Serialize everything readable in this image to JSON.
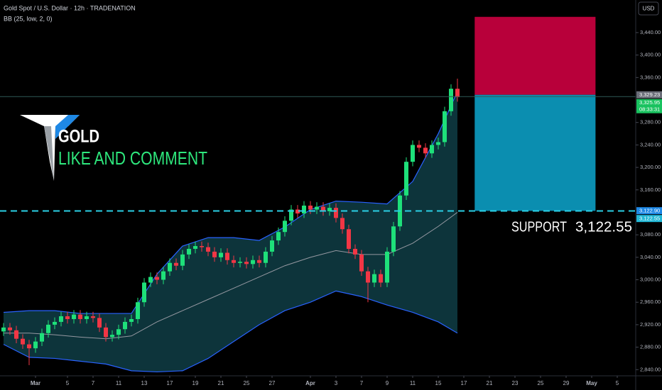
{
  "chart_data": {
    "type": "candlestick",
    "title": "Gold Spot / U.S. Dollar · 12h · TRADENATION",
    "indicator": "BB (25, low, 2, 0)",
    "currency": "USD",
    "overlay_title": "GOLD",
    "overlay_subtitle": "LIKE AND COMMENT",
    "up_color": "#1ee07a",
    "down_color": "#f23645",
    "open": [
      2908,
      2915,
      2910,
      2895,
      2885,
      2878,
      2890,
      2905,
      2920,
      2925,
      2935,
      2930,
      2938,
      2930,
      2935,
      2932,
      2915,
      2898,
      2902,
      2912,
      2925,
      2930,
      2960,
      2995,
      3005,
      3000,
      3015,
      3030,
      3025,
      3045,
      3055,
      3060,
      3058,
      3050,
      3040,
      3048,
      3035,
      3030,
      3032,
      3028,
      3035,
      3030,
      3050,
      3070,
      3085,
      3105,
      3125,
      3118,
      3132,
      3125,
      3130,
      3122,
      3128,
      3110,
      3090,
      3055,
      3045,
      3015,
      2995,
      3010,
      2995,
      3050,
      3095,
      3150,
      3210,
      3240,
      3235,
      3225,
      3240,
      3245,
      3300,
      3340
    ],
    "high": [
      2923,
      2923,
      2918,
      2903,
      2893,
      2898,
      2913,
      2928,
      2933,
      2943,
      2943,
      2946,
      2946,
      2943,
      2943,
      2940,
      2923,
      2910,
      2920,
      2933,
      2938,
      2968,
      3003,
      3013,
      3013,
      3023,
      3038,
      3038,
      3053,
      3063,
      3068,
      3068,
      3066,
      3058,
      3056,
      3056,
      3043,
      3040,
      3040,
      3043,
      3043,
      3058,
      3078,
      3093,
      3113,
      3133,
      3133,
      3140,
      3140,
      3138,
      3138,
      3136,
      3136,
      3118,
      3098,
      3063,
      3053,
      3023,
      3018,
      3018,
      3058,
      3103,
      3158,
      3218,
      3248,
      3248,
      3243,
      3248,
      3253,
      3308,
      3348,
      3358
    ],
    "low": [
      2900,
      2902,
      2887,
      2877,
      2848,
      2870,
      2882,
      2897,
      2912,
      2917,
      2922,
      2922,
      2922,
      2922,
      2924,
      2907,
      2890,
      2890,
      2894,
      2904,
      2917,
      2922,
      2952,
      2987,
      2992,
      2992,
      3007,
      3017,
      3017,
      3037,
      3047,
      3050,
      3042,
      3032,
      3032,
      3027,
      3022,
      3022,
      3020,
      3020,
      3022,
      3022,
      3042,
      3062,
      3077,
      3097,
      3110,
      3110,
      3117,
      3117,
      3114,
      3114,
      3102,
      3082,
      3047,
      3037,
      3007,
      2960,
      2987,
      2987,
      2987,
      3042,
      3087,
      3142,
      3202,
      3227,
      3217,
      3217,
      3232,
      3237,
      3292,
      3317
    ],
    "close": [
      2915,
      2910,
      2895,
      2885,
      2878,
      2890,
      2905,
      2920,
      2925,
      2935,
      2930,
      2938,
      2930,
      2935,
      2932,
      2915,
      2898,
      2902,
      2912,
      2925,
      2930,
      2960,
      2995,
      3005,
      3000,
      3015,
      3030,
      3025,
      3045,
      3055,
      3060,
      3058,
      3050,
      3040,
      3048,
      3035,
      3030,
      3032,
      3028,
      3035,
      3030,
      3050,
      3070,
      3085,
      3105,
      3125,
      3118,
      3132,
      3125,
      3130,
      3122,
      3128,
      3110,
      3090,
      3055,
      3045,
      3015,
      2995,
      3010,
      2995,
      3050,
      3095,
      3150,
      3210,
      3240,
      3235,
      3225,
      3240,
      3245,
      3300,
      3340,
      3325
    ],
    "bands": {
      "x": [
        0,
        4,
        8,
        12,
        16,
        20,
        24,
        28,
        32,
        36,
        40,
        44,
        48,
        52,
        56,
        60,
        64,
        68,
        71
      ],
      "upper": [
        2942,
        2945,
        2945,
        2940,
        2940,
        2940,
        3010,
        3060,
        3075,
        3075,
        3070,
        3094,
        3125,
        3140,
        3138,
        3135,
        3175,
        3260,
        3335
      ],
      "basis": [
        2905,
        2905,
        2902,
        2898,
        2895,
        2900,
        2925,
        2945,
        2965,
        2985,
        3005,
        3025,
        3040,
        3052,
        3045,
        3045,
        3065,
        3095,
        3120
      ],
      "lower": [
        2885,
        2862,
        2860,
        2855,
        2850,
        2838,
        2836,
        2838,
        2860,
        2890,
        2920,
        2945,
        2960,
        2980,
        2970,
        2955,
        2942,
        2925,
        2905
      ],
      "line_color": "#2962ff",
      "basis_color": "#9598a1",
      "fill_color": "#0f3d45"
    },
    "position": {
      "x_range": [
        73.7,
        92.6
      ],
      "stop": 3468,
      "entry": 3329.23,
      "target": 3122.55,
      "risk_color": "#b8003a",
      "reward_color": "#0b8eb0"
    },
    "current_price": 3325.95,
    "support": {
      "label": "SUPPORT",
      "value": 3122.55,
      "value_label": "3,122.55",
      "color": "#2ad0e6"
    },
    "price_labels": [
      {
        "value": 3329.23,
        "label": "3,329.23",
        "color": "#6a6d78"
      },
      {
        "value": 3325.95,
        "label": "3,325.95",
        "sublabel": "08:33:31",
        "color": "#19c25f"
      },
      {
        "value": 3122.9,
        "label": "3,122.90",
        "color": "#1e88e5"
      },
      {
        "value": 3122.55,
        "label": "3,122.55",
        "color": "#22b8d6"
      }
    ],
    "ylim": [
      2829,
      3498
    ],
    "yticks": [
      {
        "value": 2840,
        "label": "2,840.00"
      },
      {
        "value": 2880,
        "label": "2,880.00"
      },
      {
        "value": 2920,
        "label": "2,920.00"
      },
      {
        "value": 2960,
        "label": "2,960.00"
      },
      {
        "value": 3000,
        "label": "3,000.00"
      },
      {
        "value": 3040,
        "label": "3,040.00"
      },
      {
        "value": 3080,
        "label": "3,080.00"
      },
      {
        "value": 3160,
        "label": "3,160.00"
      },
      {
        "value": 3200,
        "label": "3,200.00"
      },
      {
        "value": 3240,
        "label": "3,240.00"
      },
      {
        "value": 3280,
        "label": "3,280.00"
      },
      {
        "value": 3360,
        "label": "3,360.00"
      },
      {
        "value": 3400,
        "label": "3,400.00"
      },
      {
        "value": 3440,
        "label": "3,440.00"
      }
    ],
    "xlim": [
      -0.556,
      98.89
    ],
    "xticks": [
      {
        "value": 5,
        "label": "Mar"
      },
      {
        "value": 10,
        "label": "5"
      },
      {
        "value": 14,
        "label": "7"
      },
      {
        "value": 18,
        "label": "11"
      },
      {
        "value": 22,
        "label": "13"
      },
      {
        "value": 26,
        "label": "17"
      },
      {
        "value": 30,
        "label": "19"
      },
      {
        "value": 34,
        "label": "21"
      },
      {
        "value": 38,
        "label": "25"
      },
      {
        "value": 42,
        "label": "27"
      },
      {
        "value": 48,
        "label": "Apr"
      },
      {
        "value": 52,
        "label": "3"
      },
      {
        "value": 56,
        "label": "7"
      },
      {
        "value": 60,
        "label": "9"
      },
      {
        "value": 64,
        "label": "11"
      },
      {
        "value": 68,
        "label": "15"
      },
      {
        "value": 72,
        "label": "17"
      },
      {
        "value": 76,
        "label": "21"
      },
      {
        "value": 80,
        "label": "23"
      },
      {
        "value": 84,
        "label": "25"
      },
      {
        "value": 88,
        "label": "29"
      },
      {
        "value": 92,
        "label": "May"
      },
      {
        "value": 96,
        "label": "5"
      }
    ],
    "grid": false
  }
}
